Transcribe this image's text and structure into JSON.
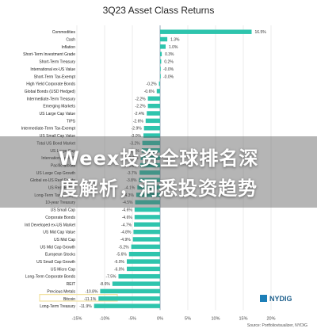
{
  "chart_data": {
    "type": "bar",
    "orientation": "horizontal",
    "title": "3Q23 Asset Class Returns",
    "categories": [
      "Commodities",
      "Cash",
      "Inflation",
      "Short-Term Investment Grade",
      "Short-Term Treasury",
      "International ex-US Value",
      "Short-Term Tax-Exempt",
      "High Yield Corporate Bonds",
      "Global Bonds (USD Hedged)",
      "Intermediate-Term Treasury",
      "Emerging Markets",
      "US Large Cap Value",
      "TIPS",
      "Intermediate-Term Tax-Exempt",
      "US Small Cap Value",
      "Total US Bond Market",
      "US Large Cap",
      "International ex-US",
      "Pacific Stocks",
      "US Large Cap Growth",
      "Global ex-US Real Estate",
      "US Real Estate",
      "Long-Term Tax-Exempt",
      "10-year Treasury",
      "US Small Cap",
      "Corporate Bonds",
      "Intl Developed ex-US Market",
      "US Mid Cap Value",
      "US Mid Cap",
      "US Mid Cap Growth",
      "European Stocks",
      "US Small Cap Growth",
      "US Micro Cap",
      "Long-Term Corporate Bonds",
      "REIT",
      "Precious Metals",
      "Bitcoin",
      "Long-Term Treasury"
    ],
    "values": [
      16.5,
      1.3,
      1.0,
      0.3,
      0.2,
      -0.0,
      -0.0,
      -0.2,
      -0.6,
      -2.2,
      -2.2,
      -2.4,
      -2.6,
      -2.9,
      -3.0,
      -3.2,
      -3.3,
      -3.5,
      -3.6,
      -3.7,
      -3.8,
      -4.1,
      -4.3,
      -4.5,
      -4.6,
      -4.6,
      -4.7,
      -4.8,
      -4.9,
      -5.2,
      -5.6,
      -6.0,
      -6.0,
      -7.5,
      -8.6,
      -10.8,
      -11.1,
      -11.9
    ],
    "value_labels": [
      "16.5%",
      "1.3%",
      "1.0%",
      "0.3%",
      "0.2%",
      "-0.0%",
      "-0.0%",
      "-0.2%",
      "-0.6%",
      "-2.2%",
      "-2.2%",
      "-2.4%",
      "-2.6%",
      "-2.9%",
      "-3.0%",
      "-3.2%",
      "-3.3%",
      "-3.5%",
      "-3.6%",
      "-3.7%",
      "-3.8%",
      "-4.1%",
      "-4.3%",
      "-4.5%",
      "-4.6%",
      "-4.6%",
      "-4.7%",
      "-4.8%",
      "-4.9%",
      "-5.2%",
      "-5.6%",
      "-6.0%",
      "-6.0%",
      "-7.5%",
      "-8.6%",
      "-10.8%",
      "-11.1%",
      "-11.9%"
    ],
    "highlight": "Bitcoin",
    "xlim": [
      -15,
      20
    ],
    "xticks": [
      "-15%",
      "-10%",
      "-5%",
      "0%",
      "5%",
      "10%",
      "15%",
      "20%"
    ],
    "grid": true,
    "colors": {
      "bar": "#2ec4ad",
      "highlight_box": "#f2e2a0",
      "grid": "#e3e3e3",
      "axis": "#9aa8b8"
    }
  },
  "overlay": {
    "line1": "Weex投资全球排名深",
    "line2": "度解析，洞悉投资趋势"
  },
  "logo": {
    "text": "NYDIG",
    "color": "#1d5f8c"
  },
  "source": "Source: Portfoliovisualizer, NYDIG"
}
